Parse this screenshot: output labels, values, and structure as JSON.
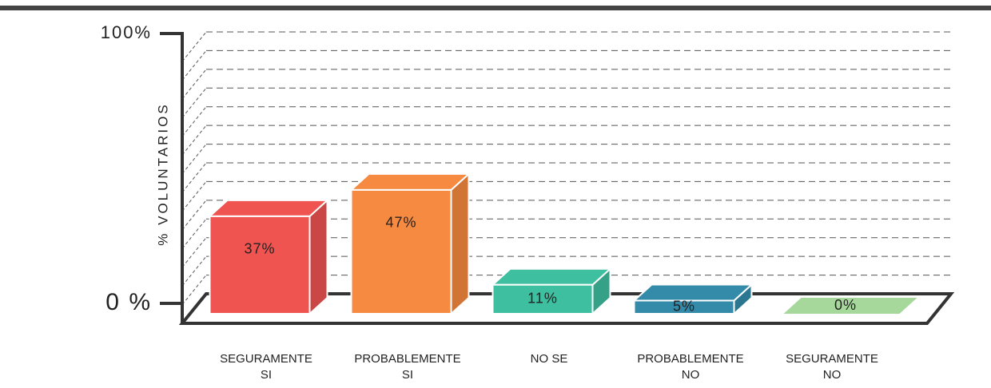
{
  "chart_data": {
    "type": "bar3d",
    "y_label": "% VOLUNTARIOS",
    "categories": [
      "SEGURAMENTE\nSI",
      "PROBABLEMENTE\nSI",
      "NO SE",
      "PROBABLEMENTE\nNO",
      "SEGURAMENTE\nNO"
    ],
    "values": [
      37,
      47,
      11,
      5,
      0
    ],
    "value_labels": [
      "37%",
      "47%",
      "11%",
      "5%",
      "0%"
    ],
    "colors": [
      "#ef5451",
      "#f58a40",
      "#3ebf9f",
      "#338ba9",
      "#a6d89b"
    ],
    "ylim": [
      0,
      100
    ],
    "yticks": [
      {
        "value": 0,
        "label": "0 %"
      },
      {
        "value": 100,
        "label": "100%"
      }
    ],
    "grid": true
  }
}
